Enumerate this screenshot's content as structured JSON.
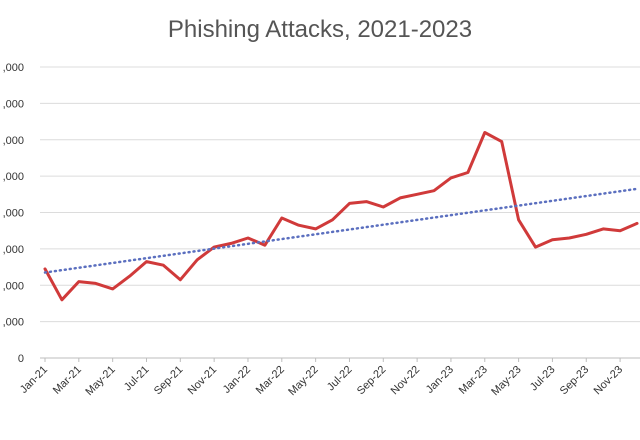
{
  "chart_data": {
    "type": "line",
    "title": "Phishing Attacks, 2021-2023",
    "xlabel": "",
    "ylabel": "",
    "y_tick_labels": [
      "0",
      ",000",
      ",000",
      ",000",
      ",000",
      ",000",
      ",000",
      ",000",
      ",000"
    ],
    "ylim": [
      0,
      8
    ],
    "grid": "horizontal",
    "legend": "none",
    "x_tick_labels": [
      "Jan-21",
      "Mar-21",
      "May-21",
      "Jul-21",
      "Sep-21",
      "Nov-21",
      "Jan-22",
      "Mar-22",
      "May-22",
      "Jul-22",
      "Sep-22",
      "Nov-22",
      "Jan-23",
      "Mar-23",
      "May-23",
      "Jul-23",
      "Sep-23",
      "Nov-23"
    ],
    "x": [
      "Jan-21",
      "Feb-21",
      "Mar-21",
      "Apr-21",
      "May-21",
      "Jun-21",
      "Jul-21",
      "Aug-21",
      "Sep-21",
      "Oct-21",
      "Nov-21",
      "Dec-21",
      "Jan-22",
      "Feb-22",
      "Mar-22",
      "Apr-22",
      "May-22",
      "Jun-22",
      "Jul-22",
      "Aug-22",
      "Sep-22",
      "Oct-22",
      "Nov-22",
      "Dec-22",
      "Jan-23",
      "Feb-23",
      "Mar-23",
      "Apr-23",
      "May-23",
      "Jun-23",
      "Jul-23",
      "Aug-23",
      "Sep-23",
      "Oct-23",
      "Nov-23",
      "Dec-23"
    ],
    "series": [
      {
        "values": [
          2.45,
          1.6,
          2.1,
          2.05,
          1.9,
          2.25,
          2.65,
          2.55,
          2.15,
          2.7,
          3.05,
          3.15,
          3.3,
          3.1,
          3.85,
          3.65,
          3.55,
          3.8,
          4.25,
          4.3,
          4.15,
          4.4,
          4.5,
          4.6,
          4.95,
          5.1,
          6.2,
          5.95,
          3.8,
          3.05,
          3.25,
          3.3,
          3.4,
          3.55,
          3.5,
          3.7
        ],
        "color": "#d03a3a",
        "style": "solid"
      },
      {
        "trendline": "linear",
        "start": 2.35,
        "end": 4.65,
        "color": "#5b6fbf",
        "style": "dotted"
      }
    ]
  }
}
